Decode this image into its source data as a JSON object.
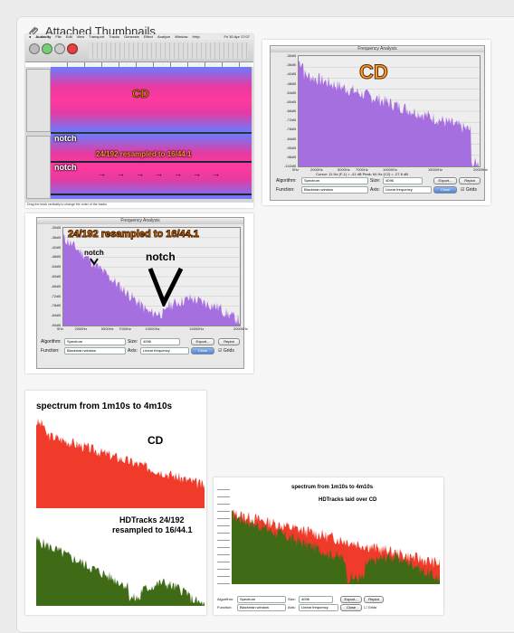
{
  "page": {
    "heading": "Attached Thumbnails",
    "clip_icon": "paperclip-icon"
  },
  "thumb1": {
    "menubar": [
      "Audacity",
      "File",
      "Edit",
      "View",
      "Transport",
      "Tracks",
      "Generate",
      "Effect",
      "Analyze",
      "Window",
      "Help"
    ],
    "clock": "Fri 30 Apr 17:07",
    "label_cd": "CD",
    "label_notch1": "notch",
    "label_notch2": "notch",
    "label_resampled": "24/192 resampled to 16/44.1",
    "status": "Drag the track vertically to change the order of the tracks"
  },
  "thumb2": {
    "title": "Frequency Analysis",
    "label": "CD",
    "yticks": [
      "-30dB",
      "-36dB",
      "-42dB",
      "-48dB",
      "-54dB",
      "-60dB",
      "-66dB",
      "-72dB",
      "-78dB",
      "-84dB",
      "-90dB",
      "-96dB",
      "-102dB"
    ],
    "xticks": [
      "0Hz",
      "2000Hz",
      "5000Hz",
      "7000Hz",
      "10000Hz",
      "15000Hz",
      "20000Hz"
    ],
    "cursor": "Cursor: 11 Hz (F-1) = -41 dB     Peak: 64 Hz (C2) = -27.6 dB",
    "algorithm_label": "Algorithm:",
    "algorithm": "Spectrum",
    "size_label": "Size:",
    "size": "4096",
    "function_label": "Function:",
    "function": "Blackman window",
    "axis_label": "Axis:",
    "axis": "Linear frequency",
    "export": "Export...",
    "replot": "Replot",
    "close": "Close",
    "grids": "Grids"
  },
  "thumb3": {
    "title": "Frequency Analysis",
    "label": "24/192 resampled to 16/44.1",
    "notch_small": "notch",
    "notch_big": "notch",
    "yticks": [
      "-30dB",
      "-36dB",
      "-42dB",
      "-48dB",
      "-54dB",
      "-60dB",
      "-66dB",
      "-72dB",
      "-78dB",
      "-84dB",
      "-90dB"
    ],
    "xticks": [
      "0Hz",
      "2000Hz",
      "5000Hz",
      "7000Hz",
      "10000Hz",
      "15000Hz",
      "20000Hz"
    ],
    "algorithm_label": "Algorithm:",
    "algorithm": "Spectrum",
    "size_label": "Size:",
    "size": "4096",
    "function_label": "Function:",
    "function": "Blackman window",
    "axis_label": "Axis:",
    "axis": "Linear frequency",
    "export": "Export...",
    "replot": "Replot",
    "close": "Close",
    "grids": "Grids"
  },
  "thumb4": {
    "title": "spectrum from 1m10s to 4m10s",
    "label_cd": "CD",
    "label_hd_line1": "HDTracks 24/192",
    "label_hd_line2": "resampled to 16/44.1"
  },
  "thumb5": {
    "title": "spectrum from 1m10s to 4m10s",
    "subtitle": "HDTracks laid over CD",
    "algorithm_label": "Algorithm:",
    "algorithm": "Spectrum",
    "size_label": "Size:",
    "size": "4096",
    "function_label": "Function:",
    "function": "Blackman window",
    "axis_label": "Axis:",
    "axis": "Linear frequency",
    "export": "Export...",
    "replot": "Replot",
    "close": "Close",
    "grids": "Grids"
  },
  "colors": {
    "purple": "#a66fe0",
    "red": "#f03a2a",
    "green": "#3f6a16",
    "pink": "#e0389c",
    "blue": "#5a7de0"
  }
}
